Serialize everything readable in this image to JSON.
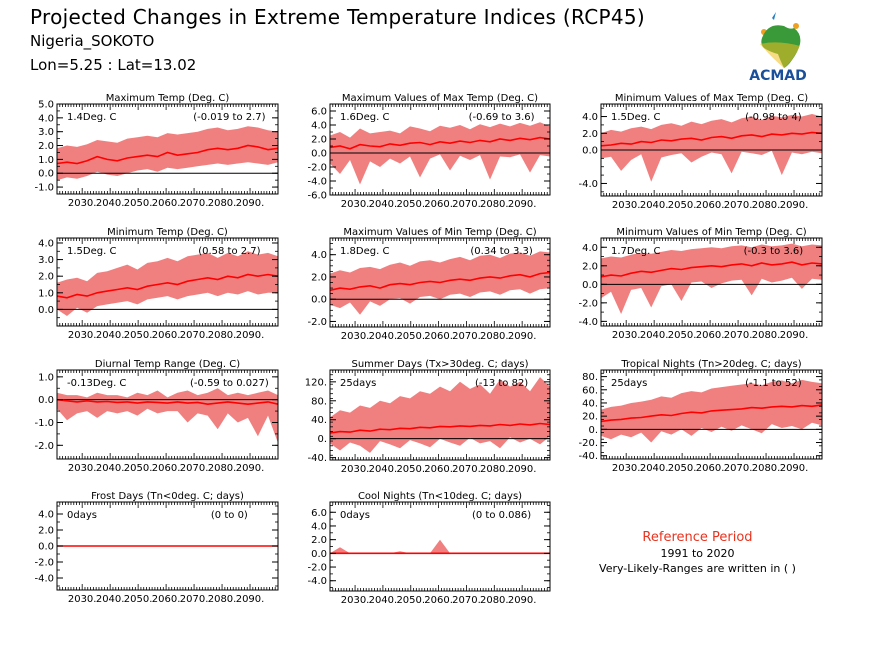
{
  "header": {
    "title": "Projected Changes in Extreme Temperature Indices (RCP45)",
    "location": "Nigeria_SOKOTO",
    "coords": "Lon=5.25 : Lat=13.02"
  },
  "logo": {
    "text": "ACMAD",
    "icon": "africa-map-logo"
  },
  "reference": {
    "title": "Reference Period",
    "years": "1991 to 2020",
    "note": "Very-Likely-Ranges are written in ( )"
  },
  "colors": {
    "band": "#f08080",
    "line": "#ff0000",
    "axis": "#000000",
    "ref_title": "#e8331f"
  },
  "chart_data": [
    {
      "type": "area",
      "title": "Maximum Temp (Deg. C)",
      "value_label": "1.4Deg. C",
      "range_label": "(-0.019 to 2.7)",
      "x_ticks": [
        "2030.",
        "2040.",
        "2050.",
        "2060.",
        "2070.",
        "2080.",
        "2090."
      ],
      "ylim": [
        -1.5,
        5.0
      ],
      "y_ticks": [
        {
          "v": 5.0,
          "l": "5.0"
        },
        {
          "v": 4.0,
          "l": "4.0"
        },
        {
          "v": 3.0,
          "l": "3.0"
        },
        {
          "v": 2.0,
          "l": "2.0"
        },
        {
          "v": 1.0,
          "l": "1.0"
        },
        {
          "v": 0.0,
          "l": "0.0"
        },
        {
          "v": -1.0,
          "l": "-1.0"
        }
      ],
      "years": [
        2021,
        2100
      ],
      "median": [
        0.7,
        0.8,
        0.7,
        0.9,
        1.2,
        1.0,
        0.9,
        1.1,
        1.2,
        1.3,
        1.2,
        1.5,
        1.3,
        1.4,
        1.5,
        1.7,
        1.8,
        1.7,
        1.8,
        2.0,
        1.9,
        1.7,
        1.8
      ],
      "lower": [
        -0.5,
        -0.3,
        -0.4,
        -0.2,
        0.1,
        -0.1,
        -0.2,
        0.0,
        0.2,
        0.3,
        0.1,
        0.4,
        0.3,
        0.4,
        0.5,
        0.6,
        0.7,
        0.6,
        0.7,
        0.8,
        0.7,
        0.6,
        0.8
      ],
      "upper": [
        1.8,
        2.0,
        1.9,
        2.1,
        2.4,
        2.3,
        2.2,
        2.5,
        2.6,
        2.7,
        2.6,
        2.9,
        2.8,
        2.9,
        3.0,
        3.2,
        3.3,
        3.1,
        3.2,
        3.4,
        3.3,
        3.1,
        3.0
      ]
    },
    {
      "type": "area",
      "title": "Maximum Values of Max Temp (Deg. C)",
      "value_label": "1.6Deg. C",
      "range_label": "(-0.69 to 3.6)",
      "x_ticks": [
        "2030.",
        "2040.",
        "2050.",
        "2060.",
        "2070.",
        "2080.",
        "2090."
      ],
      "ylim": [
        -6.0,
        7.0
      ],
      "y_ticks": [
        {
          "v": 6.0,
          "l": "6.0"
        },
        {
          "v": 4.0,
          "l": "4.0"
        },
        {
          "v": 2.0,
          "l": "2.0"
        },
        {
          "v": 0.0,
          "l": "0.0"
        },
        {
          "v": -2.0,
          "l": "-2.0"
        },
        {
          "v": -4.0,
          "l": "-4.0"
        },
        {
          "v": -6.0,
          "l": "-6.0"
        }
      ],
      "years": [
        2021,
        2100
      ],
      "median": [
        0.8,
        1.0,
        0.6,
        1.2,
        1.0,
        0.9,
        1.3,
        1.1,
        1.4,
        1.5,
        1.2,
        1.6,
        1.4,
        1.7,
        1.5,
        1.8,
        1.6,
        2.0,
        1.8,
        2.1,
        1.9,
        2.2,
        2.0
      ],
      "lower": [
        -1.5,
        -3.0,
        -1.0,
        -4.5,
        -1.2,
        -2.0,
        -0.8,
        -1.5,
        -0.5,
        -3.5,
        -0.8,
        -0.2,
        -2.5,
        -0.4,
        -1.0,
        -0.3,
        -3.8,
        -0.5,
        -0.6,
        -0.2,
        -2.8,
        -0.3,
        -0.5
      ],
      "upper": [
        2.5,
        3.0,
        2.2,
        3.5,
        2.8,
        3.0,
        3.2,
        2.8,
        3.8,
        3.5,
        3.1,
        3.9,
        3.6,
        4.0,
        3.4,
        4.1,
        3.7,
        4.2,
        3.8,
        4.3,
        3.9,
        4.4,
        3.8
      ]
    },
    {
      "type": "area",
      "title": "Minimum Values of Max Temp (Deg. C)",
      "value_label": "1.5Deg. C",
      "range_label": "(-0.98 to 4)",
      "x_ticks": [
        "2030.",
        "2040.",
        "2050.",
        "2060.",
        "2070.",
        "2080.",
        "2090."
      ],
      "ylim": [
        -5.5,
        5.5
      ],
      "y_ticks": [
        {
          "v": 4.0,
          "l": "4.0"
        },
        {
          "v": 2.0,
          "l": "2.0"
        },
        {
          "v": 0.0,
          "l": "0.0"
        },
        {
          "v": -4.0,
          "l": "-4.0"
        }
      ],
      "years": [
        2021,
        2100
      ],
      "median": [
        0.5,
        0.6,
        0.8,
        0.7,
        1.0,
        0.9,
        1.2,
        1.1,
        1.3,
        1.4,
        1.2,
        1.5,
        1.6,
        1.4,
        1.7,
        1.8,
        1.6,
        1.9,
        1.8,
        2.0,
        1.9,
        2.1,
        2.0
      ],
      "lower": [
        -1.0,
        -0.8,
        -2.5,
        -1.2,
        -0.5,
        -3.8,
        -0.9,
        -0.6,
        -0.4,
        -1.5,
        -0.8,
        -0.3,
        -0.5,
        -2.8,
        -0.2,
        -0.4,
        -0.6,
        -0.1,
        -3.0,
        -0.3,
        -0.5,
        -0.2,
        -0.4
      ],
      "upper": [
        2.0,
        2.4,
        2.2,
        2.6,
        2.8,
        2.5,
        3.0,
        3.2,
        2.9,
        3.4,
        3.1,
        3.5,
        3.7,
        3.3,
        3.8,
        4.0,
        3.6,
        4.1,
        3.9,
        4.2,
        4.0,
        4.3,
        4.0
      ]
    },
    {
      "type": "area",
      "title": "Minimum Temp (Deg. C)",
      "value_label": "1.5Deg. C",
      "range_label": "(0.58 to 2.7)",
      "x_ticks": [
        "2030.",
        "2040.",
        "2050.",
        "2060.",
        "2070.",
        "2080.",
        "2090."
      ],
      "ylim": [
        -1.0,
        4.3
      ],
      "y_ticks": [
        {
          "v": 4.0,
          "l": "4.0"
        },
        {
          "v": 3.0,
          "l": "3.0"
        },
        {
          "v": 2.0,
          "l": "2.0"
        },
        {
          "v": 1.0,
          "l": "1.0"
        },
        {
          "v": 0.0,
          "l": "0.0"
        }
      ],
      "years": [
        2021,
        2100
      ],
      "median": [
        0.8,
        0.7,
        0.9,
        0.8,
        1.0,
        1.1,
        1.2,
        1.3,
        1.2,
        1.4,
        1.5,
        1.6,
        1.5,
        1.7,
        1.8,
        1.9,
        1.8,
        2.0,
        1.9,
        2.1,
        2.0,
        2.1,
        2.0
      ],
      "lower": [
        0.0,
        -0.4,
        0.1,
        -0.2,
        0.2,
        0.3,
        0.4,
        0.5,
        0.3,
        0.6,
        0.7,
        0.8,
        0.6,
        0.8,
        0.9,
        1.0,
        0.8,
        1.0,
        0.9,
        1.1,
        0.9,
        1.0,
        1.0
      ],
      "upper": [
        1.6,
        1.8,
        1.9,
        1.7,
        2.2,
        2.3,
        2.5,
        2.7,
        2.4,
        2.8,
        2.9,
        3.1,
        2.9,
        3.2,
        3.3,
        3.4,
        3.1,
        3.4,
        3.2,
        3.5,
        3.3,
        3.4,
        3.2
      ]
    },
    {
      "type": "area",
      "title": "Maximum Values of Min Temp (Deg. C)",
      "value_label": "1.8Deg. C",
      "range_label": "(0.34 to 3.3)",
      "x_ticks": [
        "2030.",
        "2040.",
        "2050.",
        "2060.",
        "2070.",
        "2080.",
        "2090."
      ],
      "ylim": [
        -2.5,
        5.5
      ],
      "y_ticks": [
        {
          "v": 4.0,
          "l": "4.0"
        },
        {
          "v": 2.0,
          "l": "2.0"
        },
        {
          "v": 0.0,
          "l": "0.0"
        },
        {
          "v": -2.0,
          "l": "-2.0"
        }
      ],
      "years": [
        2021,
        2100
      ],
      "median": [
        0.8,
        1.0,
        0.9,
        1.1,
        1.2,
        1.0,
        1.3,
        1.4,
        1.3,
        1.5,
        1.6,
        1.5,
        1.7,
        1.8,
        1.7,
        1.9,
        2.0,
        1.9,
        2.1,
        2.2,
        2.0,
        2.3,
        2.4
      ],
      "lower": [
        -0.5,
        -0.8,
        -0.3,
        -1.4,
        -0.2,
        -0.6,
        0.0,
        0.1,
        -0.4,
        0.2,
        0.3,
        0.0,
        0.4,
        0.5,
        0.2,
        0.6,
        0.7,
        0.4,
        0.8,
        0.9,
        0.5,
        0.9,
        1.0
      ],
      "upper": [
        2.3,
        2.6,
        2.4,
        2.8,
        2.9,
        2.7,
        3.1,
        3.3,
        3.0,
        3.4,
        3.5,
        3.3,
        3.6,
        3.8,
        3.5,
        3.9,
        4.0,
        3.7,
        4.1,
        4.2,
        3.9,
        4.3,
        4.2
      ]
    },
    {
      "type": "area",
      "title": "Minimum Values of Min Temp (Deg. C)",
      "value_label": "1.7Deg. C",
      "range_label": "(-0.3 to 3.6)",
      "x_ticks": [
        "2030.",
        "2040.",
        "2050.",
        "2060.",
        "2070.",
        "2080.",
        "2090."
      ],
      "ylim": [
        -4.5,
        5.0
      ],
      "y_ticks": [
        {
          "v": 4.0,
          "l": "4.0"
        },
        {
          "v": 2.0,
          "l": "2.0"
        },
        {
          "v": 0.0,
          "l": "0.0"
        },
        {
          "v": -2.0,
          "l": "-2.0"
        },
        {
          "v": -4.0,
          "l": "-4.0"
        }
      ],
      "years": [
        2021,
        2100
      ],
      "median": [
        0.8,
        1.0,
        0.9,
        1.2,
        1.4,
        1.3,
        1.5,
        1.7,
        1.6,
        1.8,
        1.9,
        2.0,
        1.9,
        2.1,
        2.2,
        2.0,
        2.3,
        2.1,
        2.2,
        2.4,
        2.1,
        2.3,
        2.2
      ],
      "lower": [
        -1.5,
        -0.8,
        -3.2,
        -0.6,
        -0.4,
        -2.5,
        -0.2,
        0.0,
        -1.8,
        0.2,
        0.3,
        -0.4,
        0.1,
        0.4,
        0.5,
        -1.2,
        0.6,
        0.2,
        0.4,
        0.7,
        -0.5,
        0.6,
        0.5
      ],
      "upper": [
        2.8,
        3.0,
        2.9,
        3.2,
        3.4,
        3.3,
        3.5,
        3.7,
        3.6,
        3.8,
        3.9,
        4.0,
        3.9,
        4.1,
        4.2,
        4.0,
        4.3,
        4.1,
        4.2,
        4.4,
        4.1,
        4.3,
        4.2
      ]
    },
    {
      "type": "area",
      "title": "Diurnal Temp Range (Deg. C)",
      "value_label": "-0.13Deg. C",
      "range_label": "(-0.59 to 0.027)",
      "x_ticks": [
        "2030.",
        "2040.",
        "2050.",
        "2060.",
        "2070.",
        "2080.",
        "2090."
      ],
      "ylim": [
        -2.6,
        1.3
      ],
      "y_ticks": [
        {
          "v": 1.0,
          "l": "1.0"
        },
        {
          "v": 0.0,
          "l": "0.0"
        },
        {
          "v": -1.0,
          "l": "-1.0"
        },
        {
          "v": -2.0,
          "l": "-2.0"
        }
      ],
      "years": [
        2021,
        2100
      ],
      "median": [
        0.0,
        -0.05,
        -0.1,
        -0.05,
        -0.1,
        -0.08,
        -0.12,
        -0.1,
        -0.15,
        -0.1,
        -0.12,
        -0.15,
        -0.1,
        -0.15,
        -0.12,
        -0.2,
        -0.15,
        -0.1,
        -0.15,
        -0.2,
        -0.15,
        -0.1,
        -0.2
      ],
      "lower": [
        -0.4,
        -0.9,
        -0.6,
        -0.5,
        -0.8,
        -0.5,
        -0.6,
        -0.5,
        -0.7,
        -0.4,
        -0.6,
        -0.5,
        -0.5,
        -1.0,
        -0.6,
        -0.7,
        -1.3,
        -0.6,
        -1.0,
        -0.8,
        -1.6,
        -0.7,
        -1.9
      ],
      "upper": [
        0.3,
        0.2,
        0.2,
        0.1,
        0.3,
        0.2,
        0.2,
        0.1,
        0.3,
        0.2,
        0.4,
        0.1,
        0.3,
        0.4,
        0.2,
        0.3,
        0.5,
        0.2,
        0.3,
        0.2,
        0.3,
        0.4,
        0.2
      ]
    },
    {
      "type": "area",
      "title": "Summer Days (Tx>30deg. C; days)",
      "value_label": "25days",
      "range_label": "(-13 to 82)",
      "x_ticks": [
        "2030.",
        "2040.",
        "2050.",
        "2060.",
        "2070.",
        "2080.",
        "2090."
      ],
      "ylim": [
        -45,
        145
      ],
      "y_ticks": [
        {
          "v": 120,
          "l": "120."
        },
        {
          "v": 80,
          "l": "80."
        },
        {
          "v": 40,
          "l": "40."
        },
        {
          "v": 0,
          "l": "0."
        },
        {
          "v": -40,
          "l": "-40."
        }
      ],
      "years": [
        2021,
        2100
      ],
      "median": [
        12,
        15,
        14,
        18,
        16,
        20,
        19,
        22,
        21,
        24,
        23,
        26,
        25,
        27,
        26,
        28,
        27,
        30,
        28,
        31,
        29,
        32,
        30
      ],
      "lower": [
        -10,
        -25,
        -8,
        -15,
        -30,
        -5,
        -12,
        -20,
        -3,
        -10,
        -18,
        0,
        -8,
        -15,
        2,
        -10,
        -5,
        -20,
        3,
        -8,
        0,
        -12,
        5
      ],
      "upper": [
        45,
        60,
        55,
        70,
        65,
        80,
        75,
        90,
        85,
        100,
        95,
        110,
        100,
        120,
        105,
        115,
        95,
        125,
        110,
        120,
        100,
        130,
        110
      ]
    },
    {
      "type": "area",
      "title": "Tropical Nights (Tn>20deg. C; days)",
      "value_label": "25days",
      "range_label": "(-1.1 to 52)",
      "x_ticks": [
        "2030.",
        "2040.",
        "2050.",
        "2060.",
        "2070.",
        "2080.",
        "2090."
      ],
      "ylim": [
        -45,
        90
      ],
      "y_ticks": [
        {
          "v": 80,
          "l": "80."
        },
        {
          "v": 60,
          "l": "60."
        },
        {
          "v": 40,
          "l": "40."
        },
        {
          "v": 20,
          "l": "20."
        },
        {
          "v": 0,
          "l": "0."
        },
        {
          "v": -20,
          "l": "-20."
        },
        {
          "v": -40,
          "l": "-40."
        }
      ],
      "years": [
        2021,
        2100
      ],
      "median": [
        12,
        14,
        15,
        17,
        18,
        20,
        22,
        21,
        24,
        26,
        25,
        28,
        29,
        30,
        31,
        33,
        32,
        34,
        35,
        34,
        36,
        35,
        37
      ],
      "lower": [
        -10,
        -15,
        -8,
        -12,
        -5,
        -20,
        -3,
        -8,
        0,
        -10,
        2,
        -4,
        4,
        -2,
        6,
        0,
        -6,
        8,
        2,
        5,
        0,
        10,
        6
      ],
      "upper": [
        30,
        34,
        36,
        40,
        42,
        45,
        50,
        48,
        55,
        58,
        56,
        62,
        64,
        66,
        68,
        70,
        67,
        72,
        74,
        70,
        75,
        72,
        70
      ]
    },
    {
      "type": "area",
      "title": "Frost Days (Tn<0deg. C; days)",
      "value_label": "0days",
      "range_label": "(0 to 0)",
      "x_ticks": [
        "2030.",
        "2040.",
        "2050.",
        "2060.",
        "2070.",
        "2080.",
        "2090."
      ],
      "ylim": [
        -5.5,
        5.5
      ],
      "y_ticks": [
        {
          "v": 4.0,
          "l": "4.0"
        },
        {
          "v": 2.0,
          "l": "2.0"
        },
        {
          "v": 0.0,
          "l": "0.0"
        },
        {
          "v": -2.0,
          "l": "-2.0"
        },
        {
          "v": -4.0,
          "l": "-4.0"
        }
      ],
      "years": [
        2021,
        2100
      ],
      "median": [
        0,
        0,
        0,
        0,
        0,
        0,
        0,
        0,
        0,
        0,
        0,
        0,
        0,
        0,
        0,
        0,
        0,
        0,
        0,
        0,
        0,
        0,
        0
      ],
      "lower": [
        0,
        0,
        0,
        0,
        0,
        0,
        0,
        0,
        0,
        0,
        0,
        0,
        0,
        0,
        0,
        0,
        0,
        0,
        0,
        0,
        0,
        0,
        0
      ],
      "upper": [
        0,
        0,
        0,
        0,
        0,
        0,
        0,
        0,
        0,
        0,
        0,
        0,
        0,
        0,
        0,
        0,
        0,
        0,
        0,
        0,
        0,
        0,
        0
      ]
    },
    {
      "type": "area",
      "title": "Cool Nights (Tn<10deg. C; days)",
      "value_label": "0days",
      "range_label": "(0 to 0.086)",
      "x_ticks": [
        "2030.",
        "2040.",
        "2050.",
        "2060.",
        "2070.",
        "2080.",
        "2090."
      ],
      "ylim": [
        -5.5,
        7.5
      ],
      "y_ticks": [
        {
          "v": 6.0,
          "l": "6.0"
        },
        {
          "v": 4.0,
          "l": "4.0"
        },
        {
          "v": 2.0,
          "l": "2.0"
        },
        {
          "v": 0.0,
          "l": "0.0"
        },
        {
          "v": -2.0,
          "l": "-2.0"
        },
        {
          "v": -4.0,
          "l": "-4.0"
        }
      ],
      "years": [
        2021,
        2100
      ],
      "median": [
        0,
        0,
        0,
        0,
        0,
        0,
        0,
        0,
        0,
        0,
        0,
        0,
        0,
        0,
        0,
        0,
        0,
        0,
        0,
        0,
        0,
        0,
        0
      ],
      "lower": [
        0,
        0,
        0,
        0,
        0,
        0,
        0,
        0,
        0,
        0,
        0,
        0,
        0,
        0,
        0,
        0,
        0,
        0,
        0,
        0,
        0,
        0,
        0
      ],
      "upper": [
        0,
        0.9,
        0,
        0,
        0,
        0,
        0,
        0.3,
        0,
        0,
        0,
        2.0,
        0,
        0,
        0,
        0,
        0,
        0,
        0,
        0,
        0,
        0,
        0
      ]
    }
  ]
}
